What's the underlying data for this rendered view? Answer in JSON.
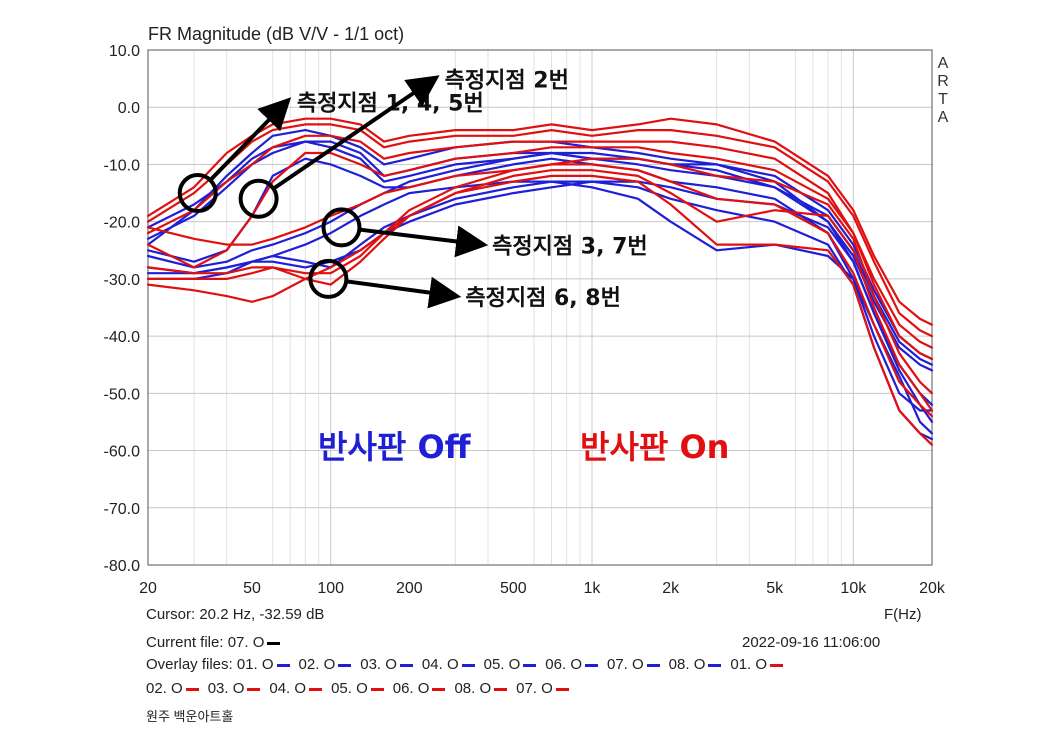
{
  "colors": {
    "off": "#1f1fd6",
    "on": "#e01010",
    "annotation": "#000000",
    "grid": "#c8c8c8",
    "axis": "#555555"
  },
  "chart_data": {
    "type": "line",
    "title": "FR Magnitude (dB V/V - 1/1 oct)",
    "xlabel": "F(Hz)",
    "ylabel": "",
    "xscale": "log",
    "xlim": [
      20,
      20000
    ],
    "ylim": [
      -80,
      10
    ],
    "grid": true,
    "xticks": [
      20,
      50,
      100,
      200,
      500,
      1000,
      2000,
      5000,
      10000,
      20000
    ],
    "xtick_labels": [
      "20",
      "50",
      "100",
      "200",
      "500",
      "1k",
      "2k",
      "5k",
      "10k",
      "20k"
    ],
    "yticks": [
      10,
      0,
      -10,
      -20,
      -30,
      -40,
      -50,
      -60,
      -70,
      -80
    ],
    "ytick_labels": [
      "10.0",
      "0.0",
      "-10.0",
      "-20.0",
      "-30.0",
      "-40.0",
      "-50.0",
      "-60.0",
      "-70.0",
      "-80.0"
    ],
    "side_label": [
      "A",
      "R",
      "T",
      "A"
    ],
    "series": [
      {
        "group": "off",
        "x": [
          20,
          30,
          40,
          50,
          60,
          80,
          100,
          130,
          160,
          200,
          300,
          500,
          700,
          1000,
          1500,
          2000,
          3000,
          5000,
          8000,
          10000,
          12000,
          15000,
          18000,
          20000
        ],
        "y": [
          -24,
          -18,
          -12,
          -8,
          -5,
          -4,
          -5,
          -7,
          -10,
          -9,
          -7,
          -6,
          -6,
          -7,
          -8,
          -9,
          -10,
          -12,
          -18,
          -24,
          -32,
          -40,
          -43,
          -44
        ]
      },
      {
        "group": "off",
        "x": [
          20,
          30,
          40,
          50,
          60,
          80,
          100,
          130,
          160,
          200,
          300,
          500,
          700,
          1000,
          1500,
          2000,
          3000,
          5000,
          8000,
          10000,
          12000,
          15000,
          18000,
          20000
        ],
        "y": [
          -21,
          -17,
          -13,
          -9,
          -7,
          -6,
          -6,
          -8,
          -12,
          -11,
          -9,
          -8,
          -8,
          -9,
          -10,
          -11,
          -12,
          -14,
          -19,
          -25,
          -33,
          -41,
          -44,
          -45
        ]
      },
      {
        "group": "off",
        "x": [
          20,
          30,
          40,
          50,
          60,
          80,
          100,
          130,
          160,
          200,
          300,
          500,
          700,
          1000,
          1500,
          2000,
          3000,
          5000,
          8000,
          10000,
          12000,
          15000,
          18000,
          20000
        ],
        "y": [
          -23,
          -19,
          -14,
          -10,
          -8,
          -6,
          -7,
          -9,
          -13,
          -12,
          -10,
          -9,
          -8,
          -9,
          -9,
          -10,
          -10,
          -13,
          -20,
          -27,
          -36,
          -46,
          -52,
          -55
        ]
      },
      {
        "group": "off",
        "x": [
          20,
          30,
          40,
          50,
          60,
          80,
          100,
          130,
          160,
          200,
          300,
          500,
          700,
          1000,
          1500,
          2000,
          3000,
          5000,
          8000,
          10000,
          12000,
          15000,
          18000,
          20000
        ],
        "y": [
          -25,
          -27,
          -25,
          -19,
          -12,
          -9,
          -10,
          -12,
          -14,
          -14,
          -12,
          -10,
          -9,
          -10,
          -11,
          -13,
          -14,
          -16,
          -22,
          -30,
          -40,
          -50,
          -53,
          -53
        ]
      },
      {
        "group": "off",
        "x": [
          20,
          30,
          40,
          50,
          60,
          80,
          100,
          130,
          160,
          200,
          300,
          500,
          700,
          1000,
          1500,
          2000,
          3000,
          5000,
          8000,
          10000,
          12000,
          15000,
          18000,
          20000
        ],
        "y": [
          -26,
          -28,
          -27,
          -25,
          -24,
          -22,
          -20,
          -17,
          -15,
          -13,
          -11,
          -9,
          -8,
          -8,
          -9,
          -10,
          -11,
          -14,
          -20,
          -26,
          -34,
          -42,
          -45,
          -46
        ]
      },
      {
        "group": "off",
        "x": [
          20,
          30,
          40,
          50,
          60,
          80,
          100,
          130,
          160,
          200,
          300,
          500,
          700,
          1000,
          1500,
          2000,
          3000,
          5000,
          8000,
          10000,
          12000,
          15000,
          18000,
          20000
        ],
        "y": [
          -28,
          -29,
          -28,
          -27,
          -26,
          -24,
          -22,
          -19,
          -17,
          -15,
          -14,
          -13,
          -13,
          -14,
          -16,
          -20,
          -25,
          -24,
          -26,
          -30,
          -38,
          -47,
          -55,
          -57
        ]
      },
      {
        "group": "off",
        "x": [
          20,
          30,
          40,
          50,
          60,
          80,
          100,
          130,
          160,
          200,
          300,
          500,
          700,
          1000,
          1500,
          2000,
          3000,
          5000,
          8000,
          10000,
          12000,
          15000,
          18000,
          20000
        ],
        "y": [
          -30,
          -30,
          -29,
          -27,
          -26,
          -27,
          -28,
          -24,
          -21,
          -19,
          -16,
          -14,
          -13,
          -13,
          -14,
          -16,
          -18,
          -20,
          -24,
          -31,
          -42,
          -53,
          -57,
          -58
        ]
      },
      {
        "group": "off",
        "x": [
          20,
          30,
          40,
          50,
          60,
          80,
          100,
          130,
          160,
          200,
          300,
          500,
          700,
          1000,
          1500,
          2000,
          3000,
          5000,
          8000,
          10000,
          12000,
          15000,
          18000,
          20000
        ],
        "y": [
          -29,
          -29,
          -28,
          -27,
          -27,
          -28,
          -27,
          -25,
          -22,
          -20,
          -17,
          -15,
          -14,
          -13,
          -13,
          -14,
          -16,
          -17,
          -21,
          -27,
          -36,
          -45,
          -50,
          -52
        ]
      },
      {
        "group": "on",
        "x": [
          20,
          30,
          40,
          50,
          60,
          80,
          100,
          130,
          160,
          200,
          300,
          500,
          700,
          1000,
          1500,
          2000,
          3000,
          5000,
          8000,
          10000,
          12000,
          15000,
          18000,
          20000
        ],
        "y": [
          -19,
          -14,
          -8,
          -5,
          -3,
          -2,
          -2,
          -3,
          -6,
          -5,
          -4,
          -4,
          -3,
          -4,
          -3,
          -2,
          -3,
          -6,
          -12,
          -18,
          -26,
          -34,
          -37,
          -38
        ]
      },
      {
        "group": "on",
        "x": [
          20,
          30,
          40,
          50,
          60,
          80,
          100,
          130,
          160,
          200,
          300,
          500,
          700,
          1000,
          1500,
          2000,
          3000,
          5000,
          8000,
          10000,
          12000,
          15000,
          18000,
          20000
        ],
        "y": [
          -20,
          -15,
          -10,
          -6,
          -4,
          -3,
          -3,
          -4,
          -7,
          -6,
          -5,
          -5,
          -4,
          -5,
          -4,
          -4,
          -5,
          -7,
          -13,
          -19,
          -27,
          -36,
          -39,
          -40
        ]
      },
      {
        "group": "on",
        "x": [
          20,
          30,
          40,
          50,
          60,
          80,
          100,
          130,
          160,
          200,
          300,
          500,
          700,
          1000,
          1500,
          2000,
          3000,
          5000,
          8000,
          10000,
          12000,
          15000,
          18000,
          20000
        ],
        "y": [
          -22,
          -18,
          -13,
          -10,
          -7,
          -5,
          -5,
          -6,
          -9,
          -8,
          -7,
          -6,
          -6,
          -6,
          -6,
          -6,
          -7,
          -9,
          -15,
          -22,
          -31,
          -40,
          -43,
          -44
        ]
      },
      {
        "group": "on",
        "x": [
          20,
          30,
          40,
          50,
          60,
          80,
          100,
          130,
          160,
          200,
          300,
          500,
          700,
          1000,
          1500,
          2000,
          3000,
          5000,
          8000,
          10000,
          12000,
          15000,
          18000,
          20000
        ],
        "y": [
          -24,
          -28,
          -25,
          -19,
          -13,
          -8,
          -8,
          -10,
          -12,
          -11,
          -9,
          -8,
          -7,
          -7,
          -7,
          -8,
          -9,
          -11,
          -16,
          -22,
          -30,
          -38,
          -41,
          -42
        ]
      },
      {
        "group": "on",
        "x": [
          20,
          30,
          40,
          50,
          60,
          80,
          100,
          130,
          160,
          200,
          300,
          500,
          700,
          1000,
          1500,
          2000,
          3000,
          5000,
          8000,
          10000,
          12000,
          15000,
          18000,
          20000
        ],
        "y": [
          -21,
          -23,
          -24,
          -24,
          -23,
          -21,
          -19,
          -17,
          -15,
          -14,
          -12,
          -11,
          -10,
          -10,
          -11,
          -13,
          -16,
          -17,
          -22,
          -29,
          -38,
          -48,
          -52,
          -54
        ]
      },
      {
        "group": "on",
        "x": [
          20,
          30,
          40,
          50,
          60,
          80,
          100,
          130,
          160,
          200,
          300,
          500,
          700,
          1000,
          1500,
          2000,
          3000,
          5000,
          8000,
          10000,
          12000,
          15000,
          18000,
          20000
        ],
        "y": [
          -31,
          -32,
          -33,
          -34,
          -33,
          -30,
          -28,
          -25,
          -22,
          -19,
          -15,
          -12,
          -11,
          -11,
          -12,
          -15,
          -20,
          -18,
          -19,
          -25,
          -35,
          -45,
          -50,
          -53
        ]
      },
      {
        "group": "on",
        "x": [
          20,
          30,
          40,
          50,
          60,
          80,
          100,
          130,
          160,
          200,
          300,
          500,
          700,
          1000,
          1500,
          2000,
          3000,
          5000,
          8000,
          10000,
          12000,
          15000,
          18000,
          20000
        ],
        "y": [
          -28,
          -29,
          -29,
          -28,
          -28,
          -30,
          -31,
          -27,
          -23,
          -19,
          -15,
          -13,
          -12,
          -12,
          -13,
          -17,
          -24,
          -24,
          -25,
          -31,
          -42,
          -53,
          -57,
          -59
        ]
      },
      {
        "group": "on",
        "x": [
          20,
          30,
          40,
          50,
          60,
          80,
          100,
          130,
          160,
          200,
          300,
          500,
          700,
          1000,
          1500,
          2000,
          3000,
          5000,
          8000,
          10000,
          12000,
          15000,
          18000,
          20000
        ],
        "y": [
          -30,
          -30,
          -30,
          -29,
          -28,
          -29,
          -29,
          -26,
          -22,
          -18,
          -14,
          -11,
          -10,
          -9,
          -9,
          -10,
          -12,
          -13,
          -17,
          -23,
          -33,
          -43,
          -48,
          -50
        ]
      }
    ],
    "annotations": [
      {
        "label": "측정지점 1, 4, 5번",
        "circle": [
          31,
          -15
        ],
        "arrow_to": [
          68,
          1
        ]
      },
      {
        "label": "측정지점 2번",
        "circle": [
          53,
          -16
        ],
        "arrow_to": [
          250,
          5
        ]
      },
      {
        "label": "측정지점 3, 7번",
        "circle": [
          110,
          -21
        ],
        "arrow_to": [
          380,
          -24
        ]
      },
      {
        "label": "측정지점 6, 8번",
        "circle": [
          98,
          -30
        ],
        "arrow_to": [
          300,
          -33
        ]
      }
    ],
    "group_labels": {
      "off": "반사판 Off",
      "on": "반사판 On"
    }
  },
  "status": {
    "cursor": "Cursor: 20.2 Hz, -32.59 dB",
    "fhz": "F(Hz)",
    "current_file": "Current file: 07. O",
    "timestamp": "2022-09-16  11:06:00",
    "overlay_prefix": "Overlay files: ",
    "overlay_row1": [
      {
        "name": "01. O",
        "color": "#1f1fd6"
      },
      {
        "name": "02. O",
        "color": "#1f1fd6"
      },
      {
        "name": "03. O",
        "color": "#1f1fd6"
      },
      {
        "name": "04. O",
        "color": "#1f1fd6"
      },
      {
        "name": "05. O",
        "color": "#1f1fd6"
      },
      {
        "name": "06. O",
        "color": "#1f1fd6"
      },
      {
        "name": "07. O",
        "color": "#1f1fd6"
      },
      {
        "name": "08. O",
        "color": "#1f1fd6"
      },
      {
        "name": "01. O",
        "color": "#e01010"
      }
    ],
    "overlay_row2": [
      {
        "name": "02. O",
        "color": "#e01010"
      },
      {
        "name": "03. O",
        "color": "#e01010"
      },
      {
        "name": "04. O",
        "color": "#e01010"
      },
      {
        "name": "05. O",
        "color": "#e01010"
      },
      {
        "name": "06. O",
        "color": "#e01010"
      },
      {
        "name": "08. O",
        "color": "#e01010"
      },
      {
        "name": "07. O",
        "color": "#e01010"
      }
    ],
    "footer": "원주 백운아트홀"
  }
}
